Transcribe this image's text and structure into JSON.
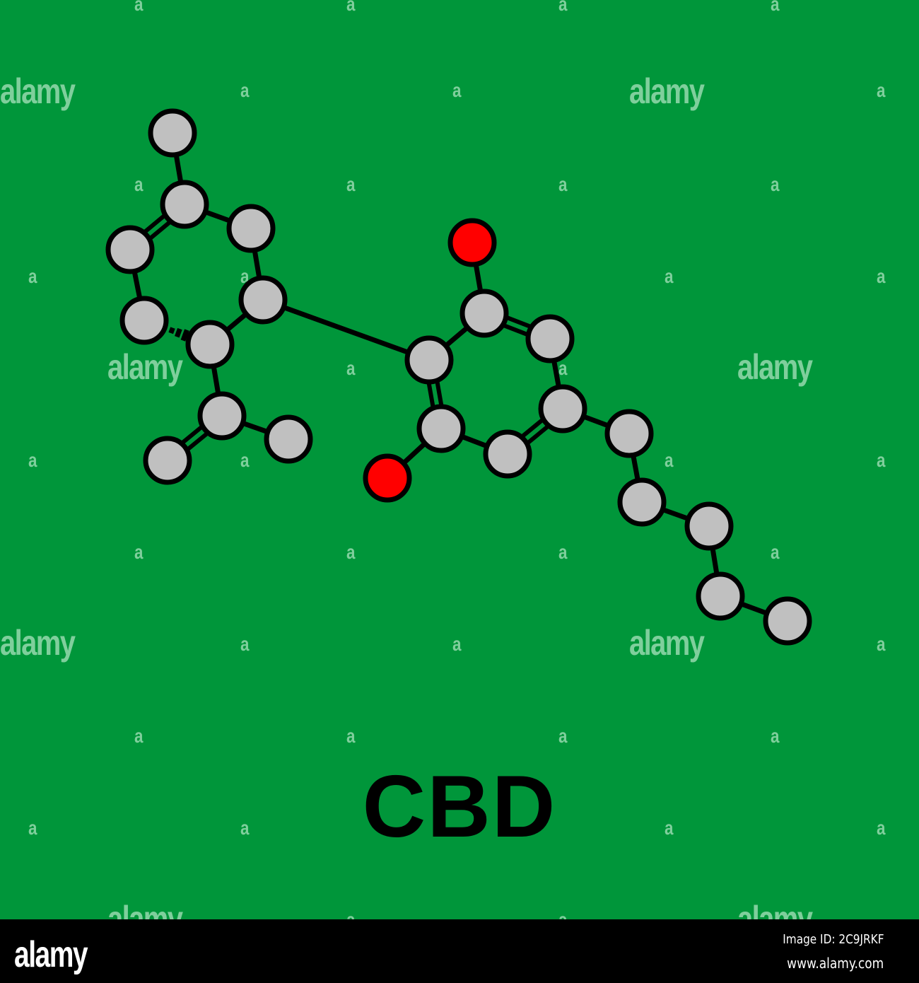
{
  "title": "CBD",
  "colors": {
    "background": "#00963a",
    "carbon": "#c0c0c0",
    "oxygen": "#ff0000",
    "bond": "#000000",
    "watermark": "#7fcf9c"
  },
  "molecule": {
    "atoms": [
      "C",
      "C",
      "C",
      "C",
      "C",
      "C",
      "C",
      "C",
      "C",
      "C",
      "C",
      "C",
      "O",
      "C",
      "C",
      "C",
      "C",
      "O",
      "C",
      "C",
      "C",
      "C",
      "C"
    ],
    "bonds": [
      {
        "a": 1,
        "b": 2,
        "order": 1
      },
      {
        "a": 2,
        "b": 4,
        "order": 2
      },
      {
        "a": 2,
        "b": 3,
        "order": 1
      },
      {
        "a": 3,
        "b": 5,
        "order": 1
      },
      {
        "a": 4,
        "b": 6,
        "order": 1
      },
      {
        "a": 6,
        "b": 7,
        "order": 1,
        "style": "hashed"
      },
      {
        "a": 5,
        "b": 7,
        "order": 1
      },
      {
        "a": 7,
        "b": 8,
        "order": 1
      },
      {
        "a": 8,
        "b": 9,
        "order": 2
      },
      {
        "a": 8,
        "b": 10,
        "order": 1
      },
      {
        "a": 5,
        "b": 11,
        "order": 1
      },
      {
        "a": 11,
        "b": 12,
        "order": 1
      },
      {
        "a": 12,
        "b": 13,
        "order": 1
      },
      {
        "a": 12,
        "b": 14,
        "order": 2
      },
      {
        "a": 14,
        "b": 15,
        "order": 1
      },
      {
        "a": 15,
        "b": 16,
        "order": 2
      },
      {
        "a": 16,
        "b": 17,
        "order": 1
      },
      {
        "a": 17,
        "b": 11,
        "order": 2
      },
      {
        "a": 17,
        "b": 18,
        "order": 1
      },
      {
        "a": 15,
        "b": 19,
        "order": 1
      },
      {
        "a": 19,
        "b": 20,
        "order": 1
      },
      {
        "a": 20,
        "b": 21,
        "order": 1
      },
      {
        "a": 21,
        "b": 22,
        "order": 1
      },
      {
        "a": 22,
        "b": 23,
        "order": 1
      }
    ]
  },
  "watermark": {
    "word": "alamy",
    "letter": "a"
  },
  "footer": {
    "logo": "alamy",
    "image_id": "Image ID: 2C9JRKF",
    "url": "www.alamy.com"
  }
}
